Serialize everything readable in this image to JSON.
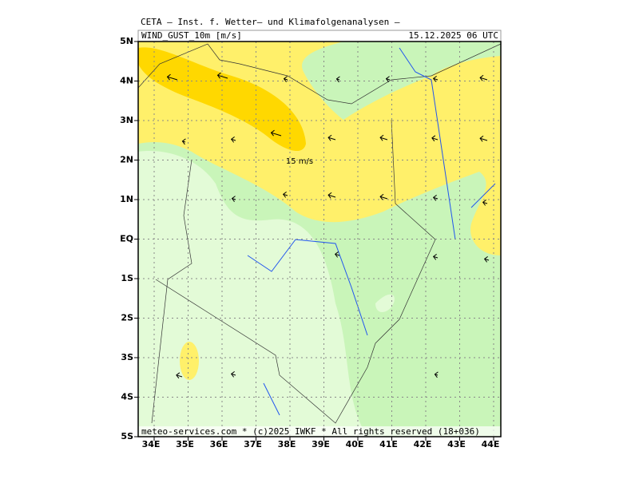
{
  "header": {
    "title": "CETA — Inst. f. Wetter— und Klimafolgenanalysen —",
    "field": "WIND_GUST_10m [m/s]",
    "time": "15.12.2025 06 UTC"
  },
  "map": {
    "lat_labels": [
      "5N",
      "4N",
      "3N",
      "2N",
      "1N",
      "EQ",
      "1S",
      "2S",
      "3S",
      "4S",
      "5S"
    ],
    "lon_labels": [
      "34E",
      "35E",
      "36E",
      "37E",
      "38E",
      "39E",
      "40E",
      "41E",
      "42E",
      "43E",
      "44E"
    ],
    "contour_label": "15 m/s"
  },
  "footer": "meteo-services.com * (c)2025 IWKF * All rights reserved (18+036)"
}
